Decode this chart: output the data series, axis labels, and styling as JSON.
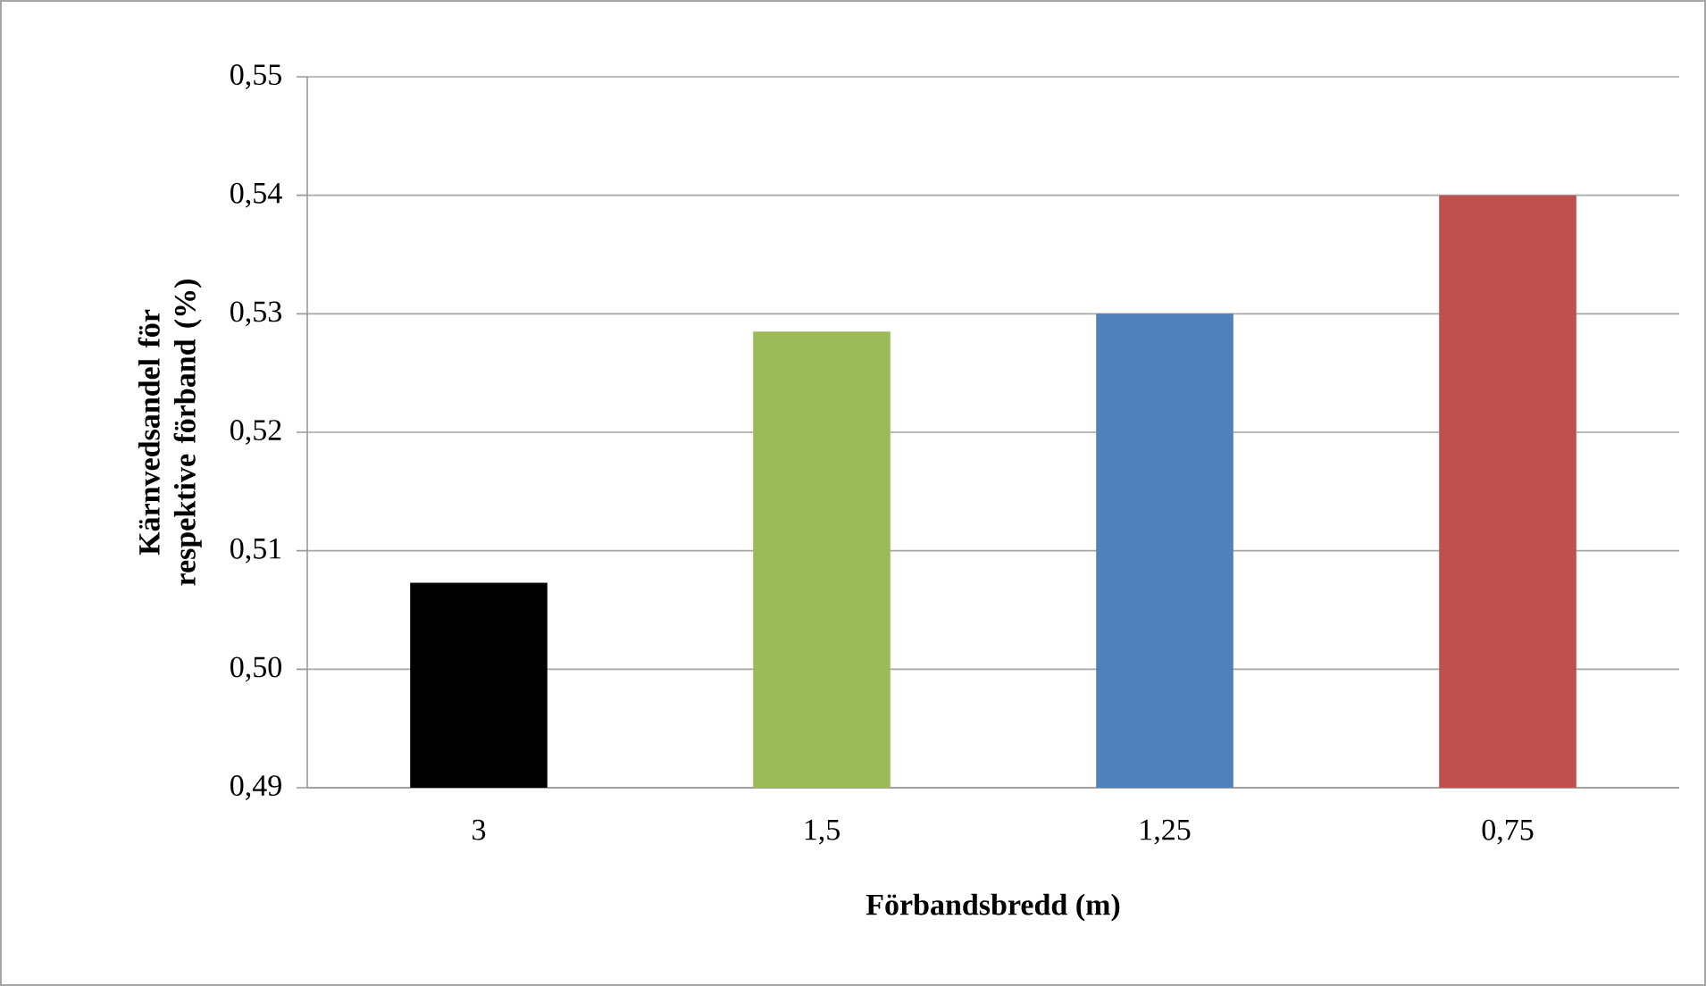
{
  "chart_data": {
    "type": "bar",
    "xlabel": "Förbandsbredd (m)",
    "ylabel": "Kärnvedsandel för respektive förband (%)",
    "categories": [
      "3",
      "1,5",
      "1,25",
      "0,75"
    ],
    "values": [
      0.5073,
      0.5285,
      0.53,
      0.54
    ],
    "colors": [
      "#000000",
      "#9bbb59",
      "#4f81bd",
      "#c0504d"
    ],
    "ylim": [
      0.49,
      0.55
    ],
    "yticks": [
      {
        "value": 0.49,
        "label": "0,49"
      },
      {
        "value": 0.5,
        "label": "0,50"
      },
      {
        "value": 0.51,
        "label": "0,51"
      },
      {
        "value": 0.52,
        "label": "0,52"
      },
      {
        "value": 0.53,
        "label": "0,53"
      },
      {
        "value": 0.54,
        "label": "0,54"
      },
      {
        "value": 0.55,
        "label": "0,55"
      }
    ],
    "grid": "y"
  }
}
